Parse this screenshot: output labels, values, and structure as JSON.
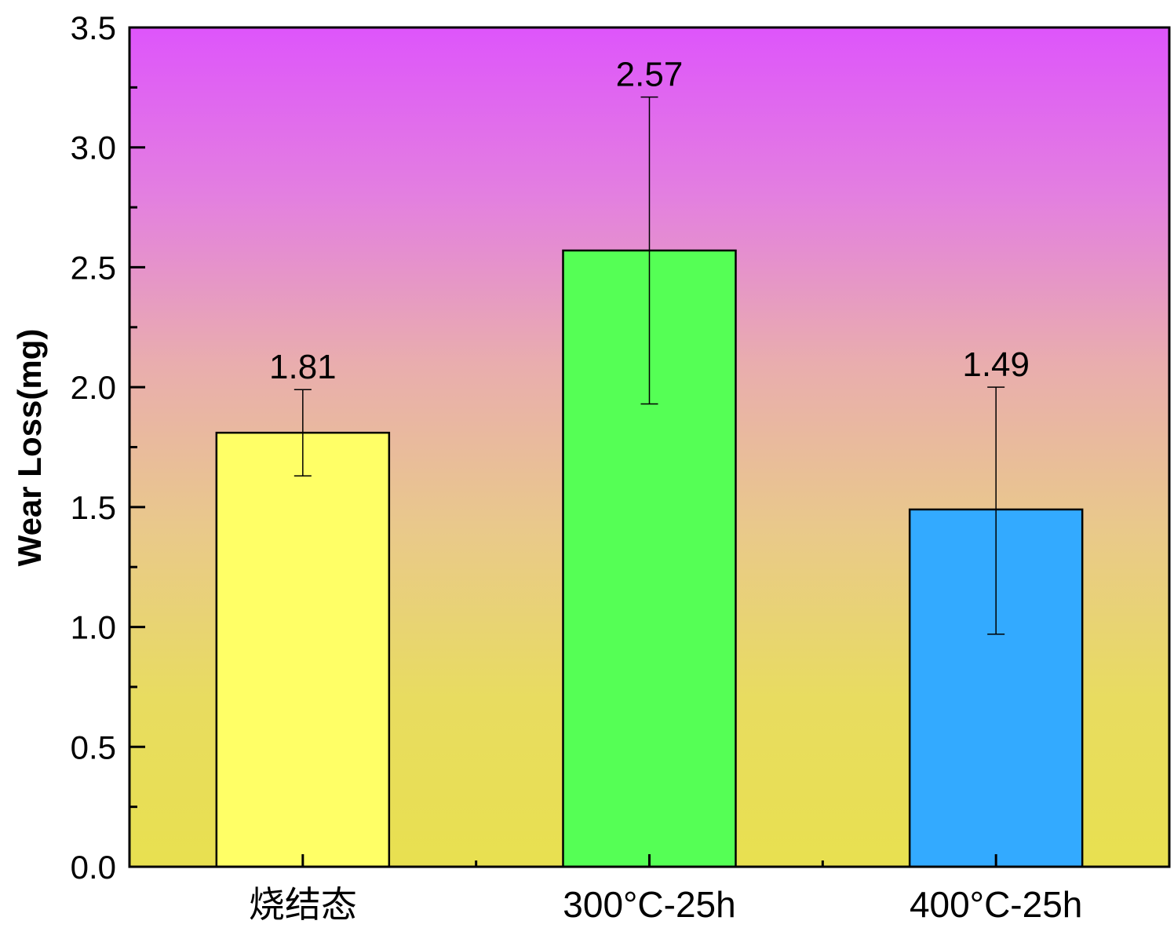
{
  "chart_data": {
    "type": "bar",
    "title": "",
    "xlabel": "",
    "ylabel": "Wear Loss(mg)",
    "ylim": [
      0,
      3.5
    ],
    "yticks": [
      "0.0",
      "0.5",
      "1.0",
      "1.5",
      "2.0",
      "2.5",
      "3.0",
      "3.5"
    ],
    "ytick_values": [
      0,
      0.5,
      1.0,
      1.5,
      2.0,
      2.5,
      3.0,
      3.5
    ],
    "categories": [
      "烧结态",
      "300°C-25h",
      "400°C-25h"
    ],
    "values": [
      1.81,
      2.57,
      1.49
    ],
    "data_labels": [
      "1.81",
      "2.57",
      "1.49"
    ],
    "error_low": [
      1.63,
      1.93,
      0.97
    ],
    "error_high": [
      1.99,
      3.21,
      2.0
    ],
    "bar_colors": [
      "#ffff66",
      "#55ff55",
      "#33aaff"
    ],
    "background_gradient": [
      "#de55fb",
      "#e37fe0",
      "#e9adae",
      "#e9c98a",
      "#e8dc60",
      "#e8e050"
    ],
    "grid": false,
    "legend": "none"
  }
}
